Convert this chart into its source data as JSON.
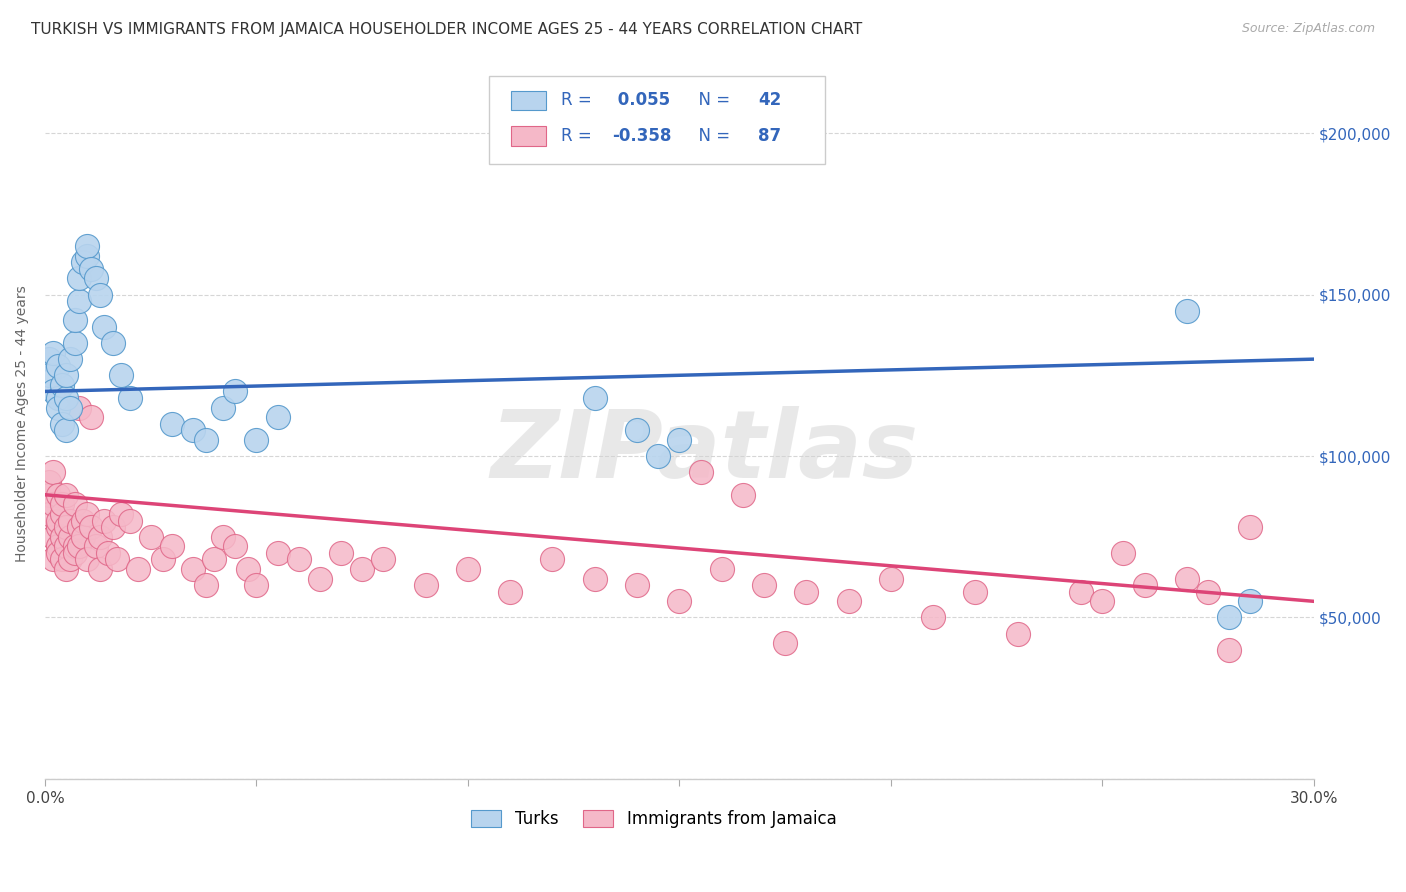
{
  "title": "TURKISH VS IMMIGRANTS FROM JAMAICA HOUSEHOLDER INCOME AGES 25 - 44 YEARS CORRELATION CHART",
  "source": "Source: ZipAtlas.com",
  "ylabel": "Householder Income Ages 25 - 44 years",
  "xlim": [
    0.0,
    0.3
  ],
  "ylim": [
    0,
    220000
  ],
  "yticks": [
    0,
    50000,
    100000,
    150000,
    200000
  ],
  "ytick_labels_right": [
    "",
    "$50,000",
    "$100,000",
    "$150,000",
    "$200,000"
  ],
  "xticks": [
    0.0,
    0.05,
    0.1,
    0.15,
    0.2,
    0.25,
    0.3
  ],
  "blue_R": 0.055,
  "blue_N": 42,
  "pink_R": -0.358,
  "pink_N": 87,
  "blue_fill": "#b8d4ee",
  "blue_edge": "#5599cc",
  "pink_fill": "#f5b8c8",
  "pink_edge": "#e06688",
  "blue_line": "#3366bb",
  "pink_line": "#dd4477",
  "bg_color": "#ffffff",
  "grid_color": "#cccccc",
  "watermark": "ZIPatlas",
  "legend_text_color": "#3366bb",
  "blue_trend_y0": 120000,
  "blue_trend_y1": 130000,
  "pink_trend_y0": 88000,
  "pink_trend_y1": 55000,
  "turks_x": [
    0.001,
    0.001,
    0.002,
    0.002,
    0.003,
    0.003,
    0.003,
    0.004,
    0.004,
    0.005,
    0.005,
    0.005,
    0.006,
    0.006,
    0.007,
    0.007,
    0.008,
    0.008,
    0.009,
    0.01,
    0.01,
    0.011,
    0.012,
    0.013,
    0.014,
    0.016,
    0.018,
    0.02,
    0.03,
    0.035,
    0.038,
    0.042,
    0.045,
    0.05,
    0.055,
    0.13,
    0.14,
    0.145,
    0.15,
    0.27,
    0.28,
    0.285
  ],
  "turks_y": [
    130000,
    125000,
    120000,
    132000,
    118000,
    128000,
    115000,
    122000,
    110000,
    108000,
    118000,
    125000,
    115000,
    130000,
    135000,
    142000,
    148000,
    155000,
    160000,
    162000,
    165000,
    158000,
    155000,
    150000,
    140000,
    135000,
    125000,
    118000,
    110000,
    108000,
    105000,
    115000,
    120000,
    105000,
    112000,
    118000,
    108000,
    100000,
    105000,
    145000,
    50000,
    55000
  ],
  "jamaica_x": [
    0.001,
    0.001,
    0.001,
    0.002,
    0.002,
    0.002,
    0.002,
    0.003,
    0.003,
    0.003,
    0.003,
    0.003,
    0.004,
    0.004,
    0.004,
    0.004,
    0.005,
    0.005,
    0.005,
    0.005,
    0.006,
    0.006,
    0.006,
    0.007,
    0.007,
    0.007,
    0.008,
    0.008,
    0.008,
    0.009,
    0.009,
    0.01,
    0.01,
    0.011,
    0.011,
    0.012,
    0.013,
    0.013,
    0.014,
    0.015,
    0.016,
    0.017,
    0.018,
    0.02,
    0.022,
    0.025,
    0.028,
    0.03,
    0.035,
    0.038,
    0.04,
    0.042,
    0.045,
    0.048,
    0.05,
    0.055,
    0.06,
    0.065,
    0.07,
    0.075,
    0.08,
    0.09,
    0.1,
    0.11,
    0.12,
    0.13,
    0.14,
    0.15,
    0.16,
    0.17,
    0.18,
    0.19,
    0.2,
    0.21,
    0.22,
    0.23,
    0.245,
    0.25,
    0.255,
    0.26,
    0.27,
    0.275,
    0.28,
    0.285,
    0.155,
    0.165,
    0.175
  ],
  "jamaica_y": [
    88000,
    82000,
    92000,
    85000,
    75000,
    95000,
    68000,
    78000,
    72000,
    88000,
    80000,
    70000,
    75000,
    82000,
    68000,
    85000,
    72000,
    78000,
    65000,
    88000,
    68000,
    75000,
    80000,
    72000,
    85000,
    70000,
    78000,
    115000,
    72000,
    80000,
    75000,
    82000,
    68000,
    112000,
    78000,
    72000,
    65000,
    75000,
    80000,
    70000,
    78000,
    68000,
    82000,
    80000,
    65000,
    75000,
    68000,
    72000,
    65000,
    60000,
    68000,
    75000,
    72000,
    65000,
    60000,
    70000,
    68000,
    62000,
    70000,
    65000,
    68000,
    60000,
    65000,
    58000,
    68000,
    62000,
    60000,
    55000,
    65000,
    60000,
    58000,
    55000,
    62000,
    50000,
    58000,
    45000,
    58000,
    55000,
    70000,
    60000,
    62000,
    58000,
    40000,
    78000,
    95000,
    88000,
    42000
  ]
}
